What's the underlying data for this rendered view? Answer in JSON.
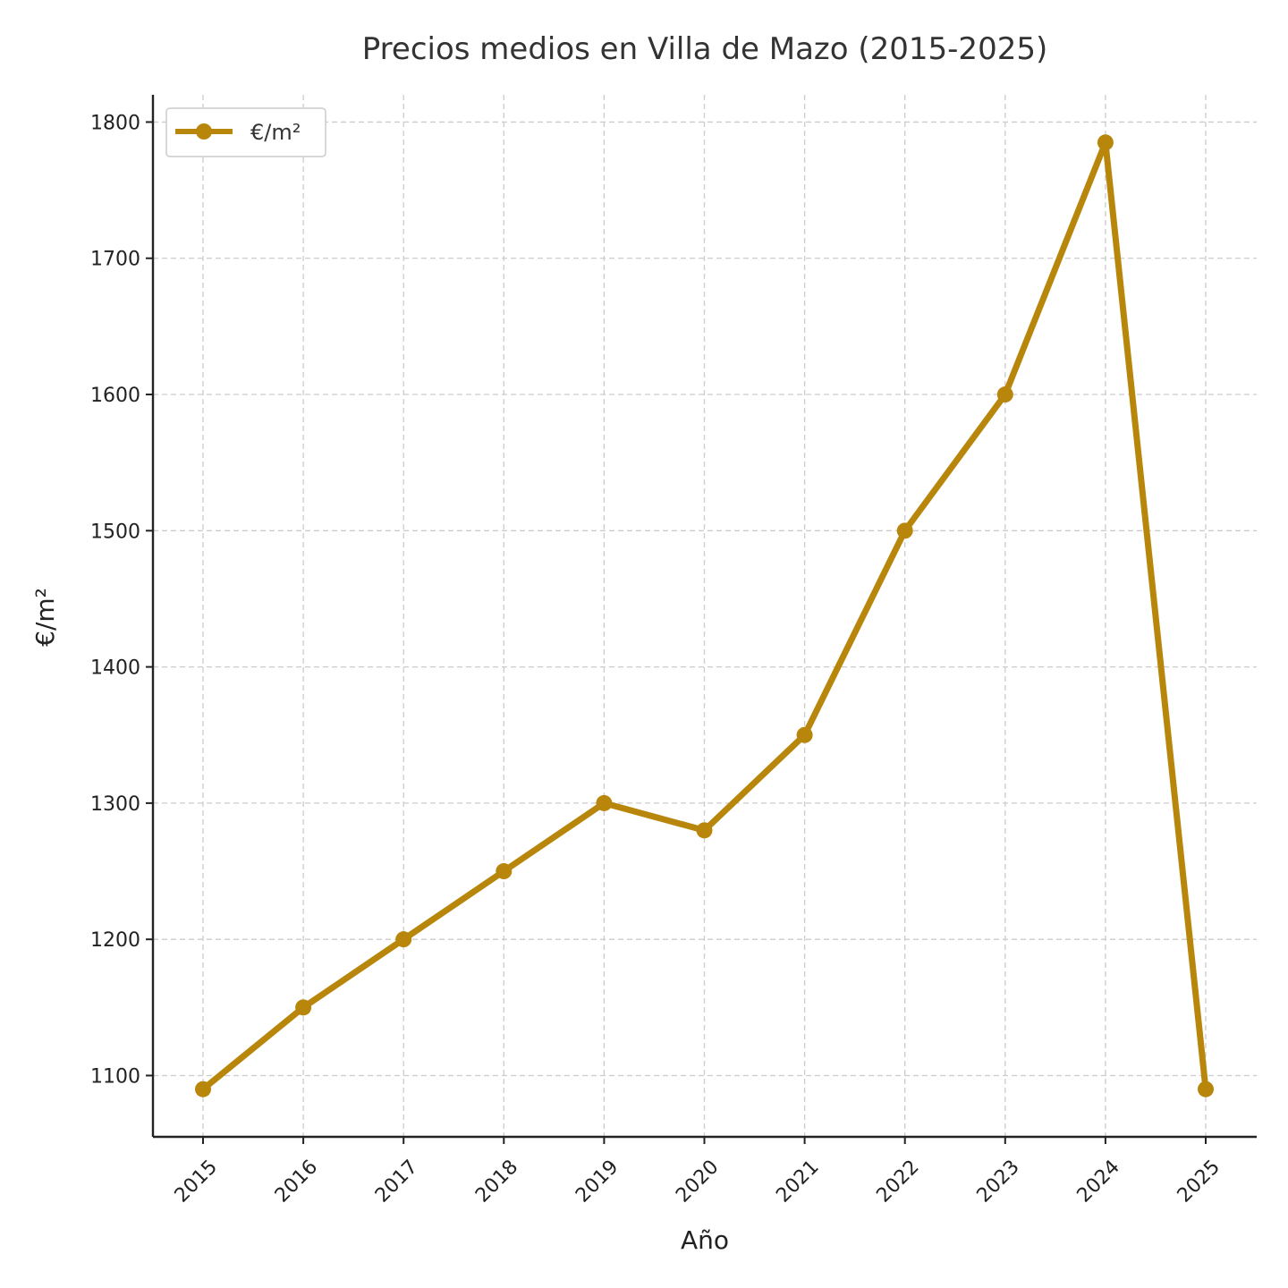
{
  "chart_data": {
    "type": "line",
    "title": "Precios medios en Villa de Mazo (2015-2025)",
    "xlabel": "Año",
    "ylabel": "€/m²",
    "x": [
      "2015",
      "2016",
      "2017",
      "2018",
      "2019",
      "2020",
      "2021",
      "2022",
      "2023",
      "2024",
      "2025"
    ],
    "series": [
      {
        "name": "€/m²",
        "color": "#B8860B",
        "marker": "circle",
        "values": [
          1090,
          1150,
          1200,
          1250,
          1300,
          1280,
          1350,
          1500,
          1600,
          1785,
          1090
        ]
      }
    ],
    "ylim": [
      1055,
      1820
    ],
    "yticks": [
      1100,
      1200,
      1300,
      1400,
      1500,
      1600,
      1700,
      1800
    ],
    "grid": true,
    "legend_position": "top-left"
  }
}
